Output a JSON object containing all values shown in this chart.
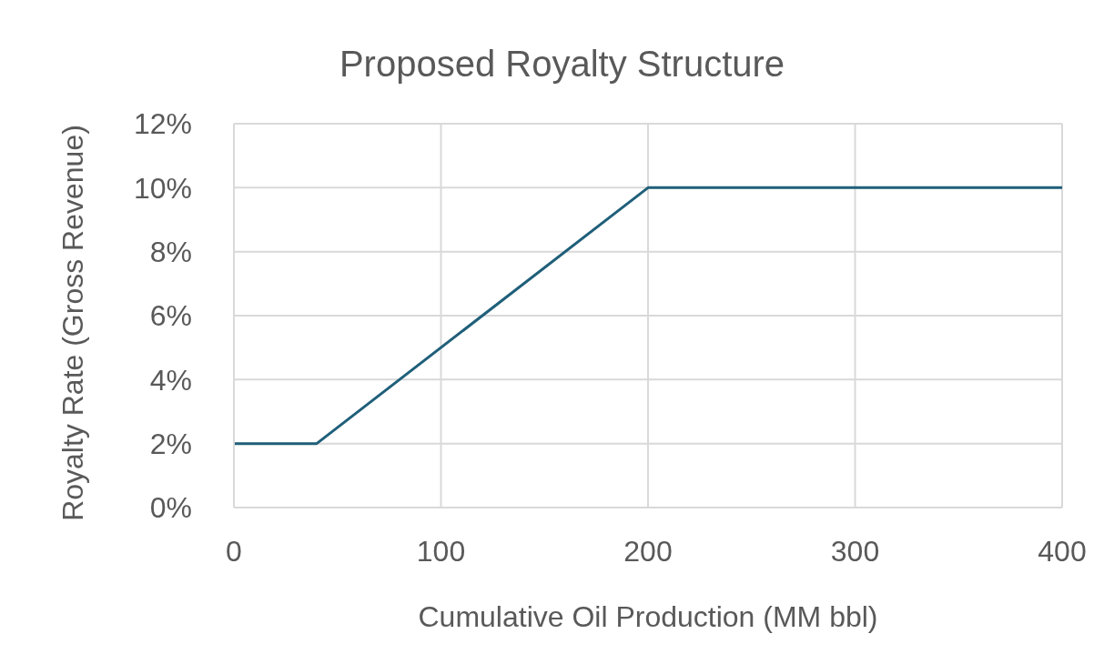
{
  "chart_data": {
    "type": "line",
    "title": "Proposed Royalty Structure",
    "xlabel": "Cumulative Oil Production (MM bbl)",
    "ylabel": "Royalty Rate (Gross Revenue)",
    "x": [
      0,
      40,
      200,
      400
    ],
    "series": [
      {
        "color": "#1f5f7a",
        "values": [
          2,
          2,
          10,
          10
        ]
      }
    ],
    "xlim": [
      0,
      400
    ],
    "xticks": [
      0,
      100,
      200,
      300,
      400
    ],
    "ylim": [
      0,
      12
    ],
    "yticks": [
      {
        "value": 0,
        "label": "0%"
      },
      {
        "value": 2,
        "label": "2%"
      },
      {
        "value": 4,
        "label": "4%"
      },
      {
        "value": 6,
        "label": "6%"
      },
      {
        "value": 8,
        "label": "8%"
      },
      {
        "value": 10,
        "label": "10%"
      },
      {
        "value": 12,
        "label": "12%"
      }
    ],
    "grid": true,
    "legend": false,
    "marker": "none",
    "line_style": "solid"
  }
}
